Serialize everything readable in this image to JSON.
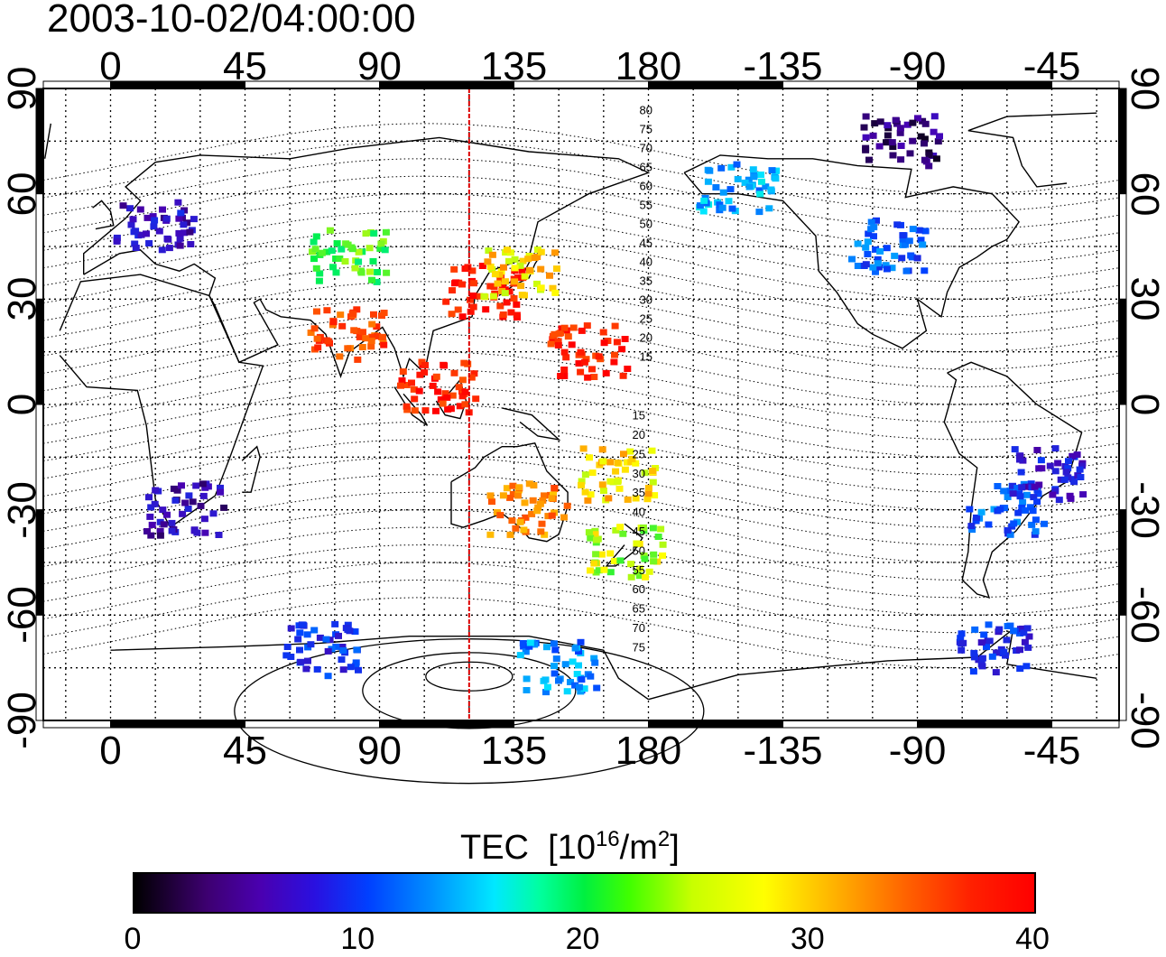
{
  "timestamp": "2003-10-02/04:00:00",
  "x_ticks": [
    "0",
    "45",
    "90",
    "135",
    "180",
    "-135",
    "-90",
    "-45"
  ],
  "y_ticks": [
    "90",
    "60",
    "30",
    "0",
    "-30",
    "-60",
    "-90"
  ],
  "contour_labels_north": [
    "80",
    "75",
    "70",
    "65",
    "60",
    "55",
    "50",
    "45",
    "40",
    "35",
    "30",
    "25",
    "20",
    "15"
  ],
  "contour_labels_south": [
    "15",
    "20",
    "25",
    "30",
    "35",
    "40",
    "45",
    "50",
    "55",
    "60",
    "65",
    "70",
    "75"
  ],
  "colorbar": {
    "title": "TEC",
    "unit_base": "[10",
    "unit_exp": "16",
    "unit_mid": "/m",
    "unit_exp2": "2",
    "unit_end": "]",
    "ticks": [
      "0",
      "10",
      "20",
      "30",
      "40"
    ],
    "min": 0,
    "max": 40
  },
  "map_data": {
    "projection": "equirectangular",
    "lon_center": 157.5,
    "meridian_marker_lon": 120,
    "meridian_marker_color": "#dd0000",
    "colormap_stops": [
      "#000000",
      "#4a00b0",
      "#0040ff",
      "#00e8ff",
      "#00f040",
      "#ffff00",
      "#ff6000",
      "#ff0000"
    ],
    "tec_regions": [
      {
        "name": "europe",
        "lon": 15,
        "lat": 50,
        "tec": 7
      },
      {
        "name": "north-america",
        "lon": -100,
        "lat": 45,
        "tec": 12
      },
      {
        "name": "alaska",
        "lon": -150,
        "lat": 62,
        "tec": 15
      },
      {
        "name": "arctic-canada",
        "lon": -95,
        "lat": 75,
        "tec": 4
      },
      {
        "name": "east-asia",
        "lon": 125,
        "lat": 32,
        "tec": 38
      },
      {
        "name": "japan",
        "lon": 138,
        "lat": 38,
        "tec": 30
      },
      {
        "name": "central-asia",
        "lon": 80,
        "lat": 42,
        "tec": 24
      },
      {
        "name": "india",
        "lon": 80,
        "lat": 20,
        "tec": 36
      },
      {
        "name": "southeast-asia",
        "lon": 110,
        "lat": 5,
        "tec": 38
      },
      {
        "name": "pacific-north",
        "lon": 160,
        "lat": 15,
        "tec": 38
      },
      {
        "name": "australia",
        "lon": 140,
        "lat": -30,
        "tec": 33
      },
      {
        "name": "new-zealand",
        "lon": 172,
        "lat": -42,
        "tec": 27
      },
      {
        "name": "south-pacific",
        "lon": 170,
        "lat": -20,
        "tec": 30
      },
      {
        "name": "south-america",
        "lon": -60,
        "lat": -30,
        "tec": 12
      },
      {
        "name": "brazil",
        "lon": -45,
        "lat": -20,
        "tec": 8
      },
      {
        "name": "southern-africa",
        "lon": 25,
        "lat": -30,
        "tec": 6
      },
      {
        "name": "antarctica-east",
        "lon": 150,
        "lat": -75,
        "tec": 14
      },
      {
        "name": "antarctica-west",
        "lon": 70,
        "lat": -70,
        "tec": 10
      },
      {
        "name": "south-atlantic",
        "lon": -65,
        "lat": -70,
        "tec": 10
      }
    ]
  }
}
